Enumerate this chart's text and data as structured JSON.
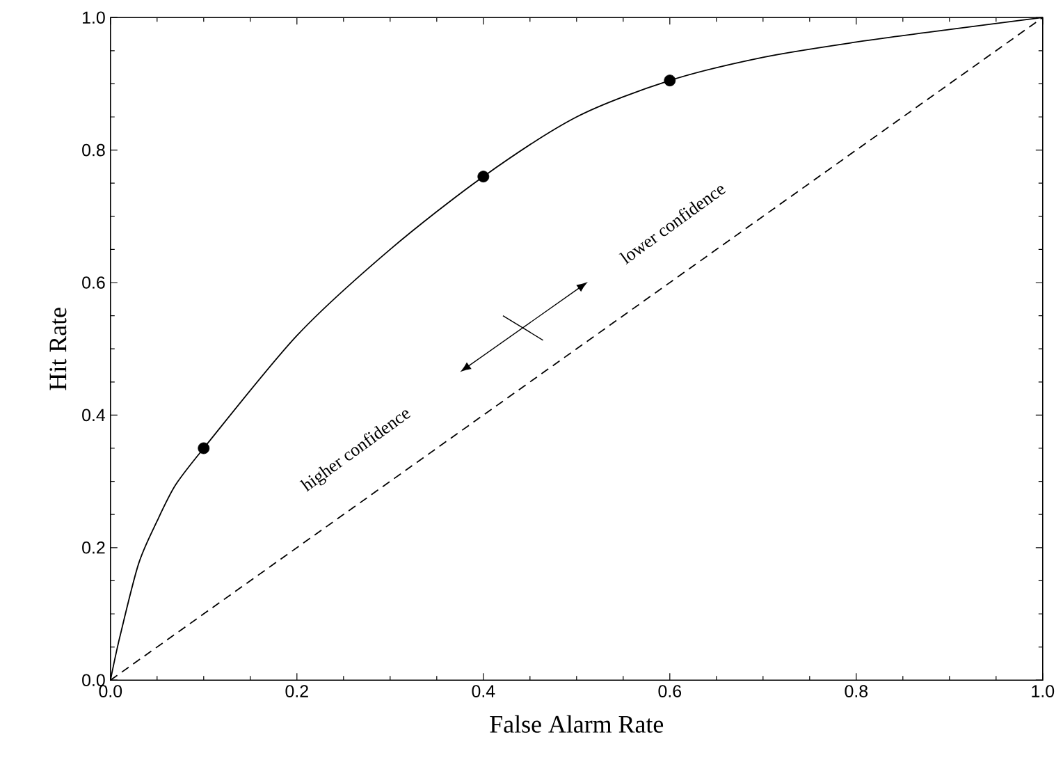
{
  "chart_data": {
    "type": "line",
    "xlabel": "False Alarm Rate",
    "ylabel": "Hit Rate",
    "xlim": [
      0,
      1
    ],
    "ylim": [
      0,
      1
    ],
    "xticks": [
      {
        "value": 0,
        "label": "0.0"
      },
      {
        "value": 0.2,
        "label": "0.2"
      },
      {
        "value": 0.4,
        "label": "0.4"
      },
      {
        "value": 0.6,
        "label": "0.6"
      },
      {
        "value": 0.8,
        "label": "0.8"
      },
      {
        "value": 1,
        "label": "1.0"
      }
    ],
    "yticks": [
      {
        "value": 0,
        "label": "0.0"
      },
      {
        "value": 0.2,
        "label": "0.2"
      },
      {
        "value": 0.4,
        "label": "0.4"
      },
      {
        "value": 0.6,
        "label": "0.6"
      },
      {
        "value": 0.8,
        "label": "0.8"
      },
      {
        "value": 1,
        "label": "1.0"
      }
    ],
    "grid": false,
    "series": [
      {
        "color": "#000000",
        "line_style": "solid",
        "marker": "none",
        "x": [
          0,
          0.01,
          0.03,
          0.05,
          0.07,
          0.1,
          0.2,
          0.3,
          0.4,
          0.5,
          0.6,
          0.7,
          0.8,
          0.9,
          1
        ],
        "values": [
          0,
          0.065,
          0.175,
          0.24,
          0.295,
          0.35,
          0.52,
          0.65,
          0.76,
          0.85,
          0.905,
          0.94,
          0.963,
          0.982,
          1
        ]
      },
      {
        "type": "scatter",
        "color": "#000000",
        "marker": "circle",
        "x": [
          0.1,
          0.4,
          0.6
        ],
        "values": [
          0.35,
          0.76,
          0.905
        ]
      },
      {
        "color": "#000000",
        "line_style": "dashed",
        "marker": "none",
        "x": [
          0,
          1
        ],
        "values": [
          0,
          1
        ]
      }
    ],
    "annotations": [
      "higher confidence",
      "lower confidence"
    ]
  }
}
